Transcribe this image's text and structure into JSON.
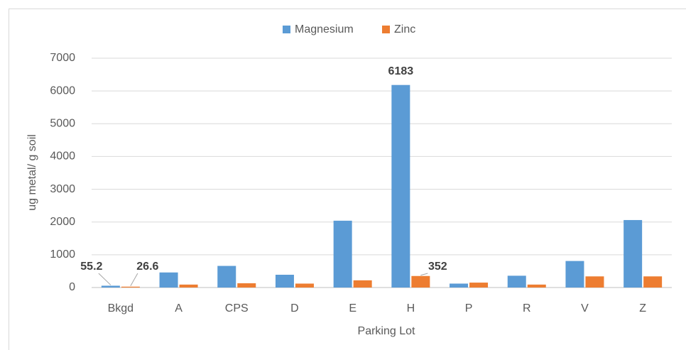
{
  "chart_data": {
    "type": "bar",
    "categories": [
      "Bkgd",
      "A",
      "CPS",
      "D",
      "E",
      "H",
      "P",
      "R",
      "V",
      "Z"
    ],
    "series": [
      {
        "name": "Magnesium",
        "color": "#5b9bd5",
        "values": [
          55.2,
          460,
          660,
          390,
          2040,
          6183,
          120,
          360,
          810,
          2060
        ],
        "value_labels": [
          "55.2",
          null,
          null,
          null,
          null,
          "6183",
          null,
          null,
          null,
          null
        ]
      },
      {
        "name": "Zinc",
        "color": "#ed7d31",
        "values": [
          26.6,
          90,
          130,
          120,
          220,
          352,
          150,
          90,
          340,
          340
        ],
        "value_labels": [
          "26.6",
          null,
          null,
          null,
          null,
          "352",
          null,
          null,
          null,
          null
        ]
      }
    ],
    "x_label": "Parking Lot",
    "y_label": "ug metal/ g soil",
    "ylim": [
      0,
      7000
    ],
    "yticks": [
      0,
      1000,
      2000,
      3000,
      4000,
      5000,
      6000,
      7000
    ],
    "grid": true,
    "legend": "top"
  }
}
